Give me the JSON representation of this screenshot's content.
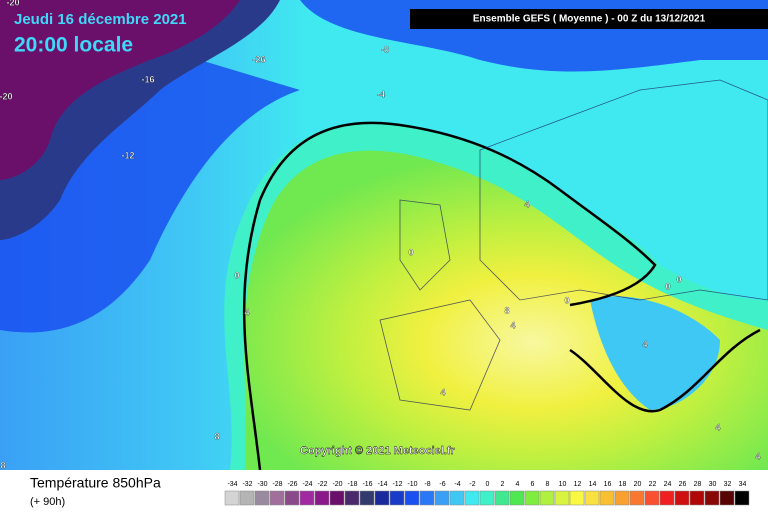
{
  "header": {
    "date": "Jeudi 16 décembre 2021",
    "time": "20:00 locale",
    "run": "Ensemble GEFS  ( Moyenne )  -  00 Z du 13/12/2021"
  },
  "map": {
    "contour_labels": [
      -20,
      -20,
      -26,
      -16,
      -12,
      -8,
      -4,
      0,
      4,
      8,
      8,
      0,
      4,
      8,
      4,
      0,
      0,
      0,
      4,
      4,
      4,
      4
    ],
    "copyright": "Copyright © 2021 Meteociel.fr"
  },
  "footer": {
    "title": "Température 850hPa",
    "lead": "(+ 90h)"
  },
  "legend": {
    "items": [
      {
        "value": -34,
        "color": "#d4d4d4"
      },
      {
        "value": -32,
        "color": "#b4b4b4"
      },
      {
        "value": -30,
        "color": "#9a8aa0"
      },
      {
        "value": -28,
        "color": "#a0709a"
      },
      {
        "value": -26,
        "color": "#8a4a8a"
      },
      {
        "value": -24,
        "color": "#a02aa0"
      },
      {
        "value": -22,
        "color": "#8a1a8a"
      },
      {
        "value": -20,
        "color": "#6a106a"
      },
      {
        "value": -18,
        "color": "#4a2a6a"
      },
      {
        "value": -16,
        "color": "#323a6e"
      },
      {
        "value": -14,
        "color": "#1a2a9a"
      },
      {
        "value": -12,
        "color": "#1a3ac8"
      },
      {
        "value": -10,
        "color": "#1a50f0"
      },
      {
        "value": -8,
        "color": "#2a78f5"
      },
      {
        "value": -6,
        "color": "#3aa0f5"
      },
      {
        "value": -4,
        "color": "#40c8f5"
      },
      {
        "value": -2,
        "color": "#40e8f0"
      },
      {
        "value": 0,
        "color": "#40f0c8"
      },
      {
        "value": 2,
        "color": "#40e890"
      },
      {
        "value": 4,
        "color": "#50e850"
      },
      {
        "value": 6,
        "color": "#80ec40"
      },
      {
        "value": 8,
        "color": "#b0f040"
      },
      {
        "value": 10,
        "color": "#d8f440"
      },
      {
        "value": 12,
        "color": "#f8f840"
      },
      {
        "value": 14,
        "color": "#f8e040"
      },
      {
        "value": 16,
        "color": "#f8c030"
      },
      {
        "value": 18,
        "color": "#f8a030"
      },
      {
        "value": 20,
        "color": "#f87830"
      },
      {
        "value": 22,
        "color": "#f85030"
      },
      {
        "value": 24,
        "color": "#f02020"
      },
      {
        "value": 26,
        "color": "#d01010"
      },
      {
        "value": 28,
        "color": "#b00808"
      },
      {
        "value": 30,
        "color": "#880808"
      },
      {
        "value": 32,
        "color": "#580404"
      },
      {
        "value": 34,
        "color": "#000000"
      }
    ]
  }
}
